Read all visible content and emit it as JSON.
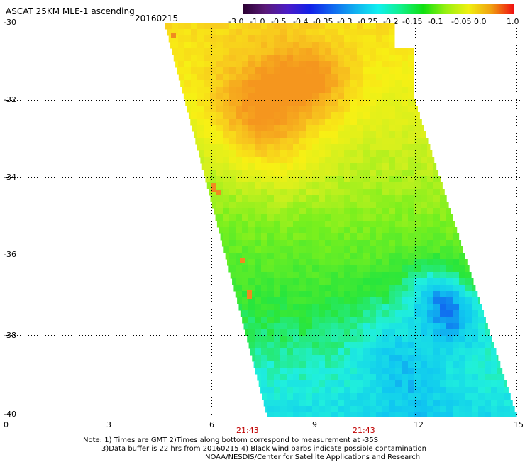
{
  "header": {
    "title": "ASCAT 25KM MLE-1 ascending",
    "date": "20160215"
  },
  "colorbar": {
    "tick_labels": [
      "-3.0",
      "-1.0",
      "-0.5",
      "-0.4",
      "-0.35",
      "-0.3",
      "-0.25",
      "-0.2",
      "-0.15",
      "-0.1",
      "-0.05",
      "0.0",
      "1.0"
    ],
    "colors": [
      "#2a0030",
      "#5a1a78",
      "#4b1cc8",
      "#1020e8",
      "#1068f0",
      "#10b0f0",
      "#10f0f0",
      "#10f08a",
      "#10e010",
      "#98f010",
      "#f0f010",
      "#f0a010",
      "#f01010"
    ]
  },
  "axes": {
    "lat_labels": [
      "-30",
      "-32",
      "-34",
      "-36",
      "-38",
      "-40"
    ],
    "lon_labels": [
      "0",
      "3",
      "6",
      "9",
      "12",
      "15"
    ],
    "time_labels": [
      "21:43",
      "21:43"
    ]
  },
  "notes": {
    "line1": "Note: 1) Times are GMT 2)Times along bottom correspond to measurement at -35S",
    "line2": "3)Data buffer is 22 hrs from 20160215 4) Black wind barbs indicate possible contamination",
    "line3": "NOAA/NESDIS/Center for Satellite Applications and Research"
  }
}
